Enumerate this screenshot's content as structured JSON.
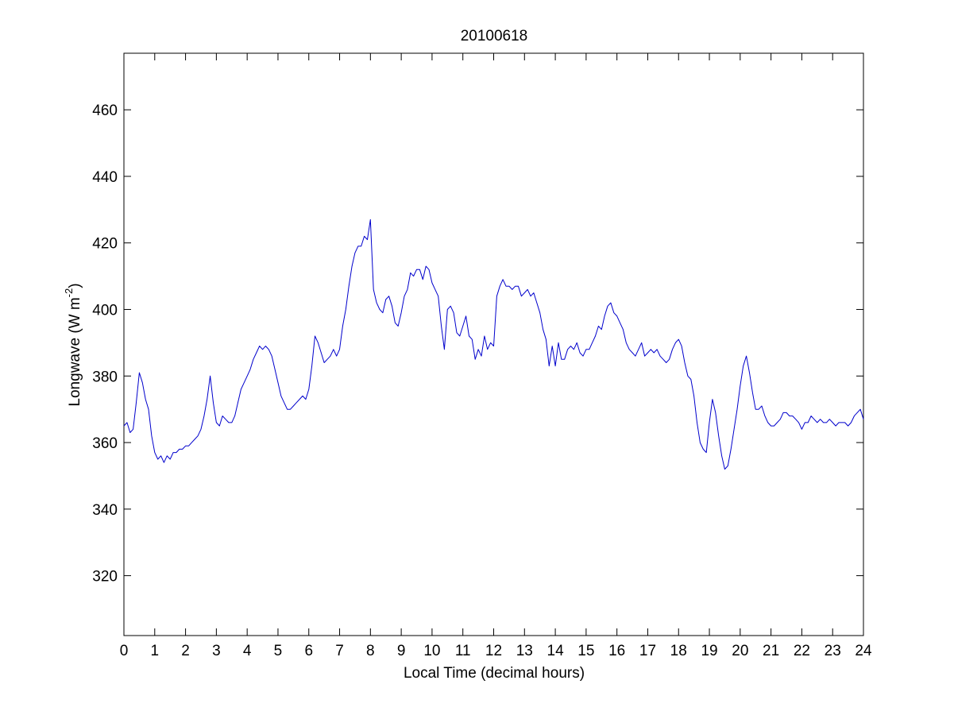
{
  "chart_data": {
    "type": "line",
    "title": "20100618",
    "xlabel": "Local Time (decimal hours)",
    "ylabel_main": "Longwave (W m",
    "ylabel_sup": "-2",
    "ylabel_close": ")",
    "xlim": [
      0,
      24
    ],
    "ylim": [
      302,
      477
    ],
    "xticks": [
      0,
      1,
      2,
      3,
      4,
      5,
      6,
      7,
      8,
      9,
      10,
      11,
      12,
      13,
      14,
      15,
      16,
      17,
      18,
      19,
      20,
      21,
      22,
      23,
      24
    ],
    "xtick_labels": [
      "0",
      "1",
      "2",
      "3",
      "4",
      "5",
      "6",
      "7",
      "8",
      "9",
      "10",
      "11",
      "12",
      "13",
      "14",
      "15",
      "16",
      "17",
      "18",
      "19",
      "20",
      "21",
      "22",
      "23",
      "24"
    ],
    "yticks": [
      320,
      340,
      360,
      380,
      400,
      420,
      440,
      460
    ],
    "ytick_labels": [
      "320",
      "340",
      "360",
      "380",
      "400",
      "420",
      "440",
      "460"
    ],
    "grid": false,
    "legend": "none",
    "series": [
      {
        "color": "#0000cc",
        "x": [
          0,
          0.1,
          0.2,
          0.3,
          0.4,
          0.5,
          0.6,
          0.7,
          0.8,
          0.9,
          1.0,
          1.1,
          1.2,
          1.3,
          1.4,
          1.5,
          1.6,
          1.7,
          1.8,
          1.9,
          2.0,
          2.1,
          2.2,
          2.3,
          2.4,
          2.5,
          2.6,
          2.7,
          2.8,
          2.9,
          3.0,
          3.1,
          3.2,
          3.3,
          3.4,
          3.5,
          3.6,
          3.7,
          3.8,
          3.9,
          4.0,
          4.1,
          4.2,
          4.3,
          4.4,
          4.5,
          4.6,
          4.7,
          4.8,
          4.9,
          5.0,
          5.1,
          5.2,
          5.3,
          5.4,
          5.5,
          5.6,
          5.7,
          5.8,
          5.9,
          6.0,
          6.1,
          6.2,
          6.3,
          6.4,
          6.5,
          6.6,
          6.7,
          6.8,
          6.9,
          7.0,
          7.1,
          7.2,
          7.3,
          7.4,
          7.5,
          7.6,
          7.7,
          7.8,
          7.9,
          8.0,
          8.1,
          8.2,
          8.3,
          8.4,
          8.5,
          8.6,
          8.7,
          8.8,
          8.9,
          9.0,
          9.1,
          9.2,
          9.3,
          9.4,
          9.5,
          9.6,
          9.7,
          9.8,
          9.9,
          10.0,
          10.1,
          10.2,
          10.3,
          10.4,
          10.5,
          10.6,
          10.7,
          10.8,
          10.9,
          11.0,
          11.1,
          11.2,
          11.3,
          11.4,
          11.5,
          11.6,
          11.7,
          11.8,
          11.9,
          12.0,
          12.1,
          12.2,
          12.3,
          12.4,
          12.5,
          12.6,
          12.7,
          12.8,
          12.9,
          13.0,
          13.1,
          13.2,
          13.3,
          13.4,
          13.5,
          13.6,
          13.7,
          13.8,
          13.9,
          14.0,
          14.1,
          14.2,
          14.3,
          14.4,
          14.5,
          14.6,
          14.7,
          14.8,
          14.9,
          15.0,
          15.1,
          15.2,
          15.3,
          15.4,
          15.5,
          15.6,
          15.7,
          15.8,
          15.9,
          16.0,
          16.1,
          16.2,
          16.3,
          16.4,
          16.5,
          16.6,
          16.7,
          16.8,
          16.9,
          17.0,
          17.1,
          17.2,
          17.3,
          17.4,
          17.5,
          17.6,
          17.7,
          17.8,
          17.9,
          18.0,
          18.1,
          18.2,
          18.3,
          18.4,
          18.5,
          18.6,
          18.7,
          18.8,
          18.9,
          19.0,
          19.1,
          19.2,
          19.3,
          19.4,
          19.5,
          19.6,
          19.7,
          19.8,
          19.9,
          20.0,
          20.1,
          20.2,
          20.3,
          20.4,
          20.5,
          20.6,
          20.7,
          20.8,
          20.9,
          21.0,
          21.1,
          21.2,
          21.3,
          21.4,
          21.5,
          21.6,
          21.7,
          21.8,
          21.9,
          22.0,
          22.1,
          22.2,
          22.3,
          22.4,
          22.5,
          22.6,
          22.7,
          22.8,
          22.9,
          23.0,
          23.1,
          23.2,
          23.3,
          23.4,
          23.5,
          23.6,
          23.7,
          23.8,
          23.9,
          24.0
        ],
        "y": [
          365,
          366,
          363,
          364,
          372,
          381,
          378,
          373,
          370,
          362,
          357,
          355,
          356,
          354,
          356,
          355,
          357,
          357,
          358,
          358,
          359,
          359,
          360,
          361,
          362,
          364,
          368,
          373,
          380,
          372,
          366,
          365,
          368,
          367,
          366,
          366,
          368,
          372,
          376,
          378,
          380,
          382,
          385,
          387,
          389,
          388,
          389,
          388,
          386,
          382,
          378,
          374,
          372,
          370,
          370,
          371,
          372,
          373,
          374,
          373,
          376,
          383,
          392,
          390,
          387,
          384,
          385,
          386,
          388,
          386,
          388,
          395,
          400,
          407,
          413,
          417,
          419,
          419,
          422,
          421,
          427,
          406,
          402,
          400,
          399,
          403,
          404,
          401,
          396,
          395,
          399,
          404,
          406,
          411,
          410,
          412,
          412,
          409,
          413,
          412,
          408,
          406,
          404,
          395,
          388,
          400,
          401,
          399,
          393,
          392,
          395,
          398,
          392,
          391,
          385,
          388,
          386,
          392,
          388,
          390,
          389,
          404,
          407,
          409,
          407,
          407,
          406,
          407,
          407,
          404,
          405,
          406,
          404,
          405,
          402,
          399,
          394,
          391,
          383,
          389,
          383,
          390,
          385,
          385,
          388,
          389,
          388,
          390,
          387,
          386,
          388,
          388,
          390,
          392,
          395,
          394,
          398,
          401,
          402,
          399,
          398,
          396,
          394,
          390,
          388,
          387,
          386,
          388,
          390,
          386,
          387,
          388,
          387,
          388,
          386,
          385,
          384,
          385,
          388,
          390,
          391,
          389,
          384,
          380,
          379,
          374,
          366,
          360,
          358,
          357,
          366,
          373,
          369,
          362,
          356,
          352,
          353,
          358,
          364,
          370,
          377,
          383,
          386,
          381,
          375,
          370,
          370,
          371,
          368,
          366,
          365,
          365,
          366,
          367,
          369,
          369,
          368,
          368,
          367,
          366,
          364,
          366,
          366,
          368,
          367,
          366,
          367,
          366,
          366,
          367,
          366,
          365,
          366,
          366,
          366,
          365,
          366,
          368,
          369,
          370,
          367
        ]
      }
    ]
  }
}
